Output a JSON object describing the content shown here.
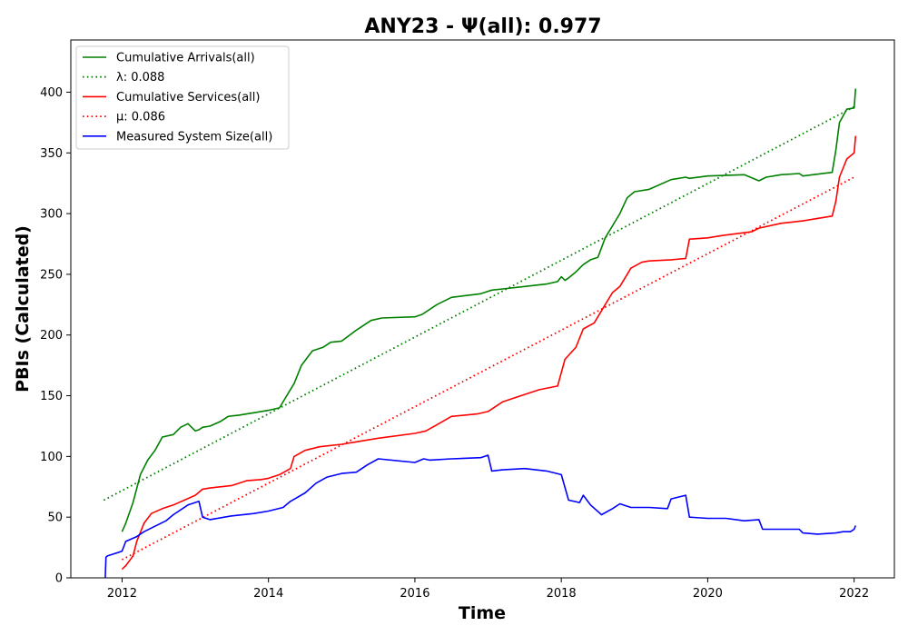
{
  "chart_data": {
    "type": "line",
    "title": "ANY23 -  Ψ(all): 0.977",
    "xlabel": "Time",
    "ylabel": "PBIs (Calculated)",
    "xlim": [
      2011.3,
      2022.55
    ],
    "ylim": [
      0,
      443
    ],
    "x_ticks": [
      2012,
      2014,
      2016,
      2018,
      2020,
      2022
    ],
    "x_tick_labels": [
      "2012",
      "2014",
      "2016",
      "2018",
      "2020",
      "2022"
    ],
    "y_ticks": [
      0,
      50,
      100,
      150,
      200,
      250,
      300,
      350,
      400
    ],
    "y_tick_labels": [
      "0",
      "50",
      "100",
      "150",
      "200",
      "250",
      "300",
      "350",
      "400"
    ],
    "grid": false,
    "legend_position": "top-left",
    "series": [
      {
        "name": "Cumulative Arrivals(all)",
        "color": "#008000",
        "style": "solid",
        "x": [
          2012.0,
          2012.05,
          2012.15,
          2012.25,
          2012.35,
          2012.45,
          2012.55,
          2012.7,
          2012.8,
          2012.9,
          2013.0,
          2013.05,
          2013.1,
          2013.2,
          2013.35,
          2013.45,
          2013.6,
          2013.7,
          2013.8,
          2014.0,
          2014.15,
          2014.25,
          2014.35,
          2014.45,
          2014.6,
          2014.75,
          2014.85,
          2015.0,
          2015.2,
          2015.4,
          2015.55,
          2016.0,
          2016.1,
          2016.3,
          2016.5,
          2016.9,
          2017.0,
          2017.05,
          2017.2,
          2017.5,
          2017.8,
          2017.95,
          2018.0,
          2018.05,
          2018.1,
          2018.2,
          2018.3,
          2018.4,
          2018.5,
          2018.6,
          2018.7,
          2018.8,
          2018.9,
          2019.0,
          2019.2,
          2019.5,
          2019.7,
          2019.75,
          2020.0,
          2020.5,
          2020.7,
          2020.8,
          2021.0,
          2021.25,
          2021.3,
          2021.7,
          2021.75,
          2021.8,
          2021.9,
          2022.0,
          2022.02
        ],
        "values": [
          38,
          45,
          62,
          85,
          97,
          105,
          116,
          118,
          124,
          127,
          121,
          122,
          124,
          125,
          129,
          133,
          134,
          135,
          136,
          138,
          140,
          150,
          160,
          175,
          187,
          190,
          194,
          195,
          204,
          212,
          214,
          215,
          217,
          225,
          231,
          234,
          236,
          237,
          238,
          240,
          242,
          244,
          248,
          245,
          247,
          252,
          258,
          262,
          264,
          280,
          290,
          300,
          313,
          318,
          320,
          328,
          330,
          329,
          331,
          332,
          327,
          330,
          332,
          333,
          331,
          334,
          352,
          375,
          386,
          387,
          403
        ]
      },
      {
        "name": "λ: 0.088",
        "color": "#008000",
        "style": "dotted",
        "x": [
          2011.75,
          2022.0
        ],
        "values": [
          64,
          388
        ]
      },
      {
        "name": "Cumulative Services(all)",
        "color": "#ff0000",
        "style": "solid",
        "x": [
          2012.0,
          2012.05,
          2012.1,
          2012.15,
          2012.2,
          2012.3,
          2012.4,
          2012.55,
          2012.7,
          2013.0,
          2013.1,
          2013.2,
          2013.5,
          2013.6,
          2013.7,
          2013.9,
          2014.0,
          2014.15,
          2014.3,
          2014.35,
          2014.5,
          2014.7,
          2015.0,
          2015.2,
          2015.5,
          2016.0,
          2016.15,
          2016.3,
          2016.5,
          2016.85,
          2017.0,
          2017.2,
          2017.45,
          2017.7,
          2017.95,
          2018.05,
          2018.2,
          2018.3,
          2018.45,
          2018.6,
          2018.7,
          2018.8,
          2018.95,
          2019.1,
          2019.2,
          2019.5,
          2019.7,
          2019.75,
          2020.0,
          2020.2,
          2020.6,
          2020.7,
          2021.0,
          2021.3,
          2021.5,
          2021.7,
          2021.75,
          2021.8,
          2021.9,
          2022.0,
          2022.02
        ],
        "values": [
          7,
          10,
          14,
          18,
          30,
          45,
          53,
          57,
          60,
          68,
          73,
          74,
          76,
          78,
          80,
          81,
          82,
          85,
          90,
          100,
          105,
          108,
          110,
          112,
          115,
          119,
          121,
          126,
          133,
          135,
          137,
          145,
          150,
          155,
          158,
          180,
          190,
          205,
          210,
          225,
          235,
          240,
          255,
          260,
          261,
          262,
          263,
          279,
          280,
          282,
          285,
          288,
          292,
          294,
          296,
          298,
          310,
          330,
          345,
          350,
          364
        ]
      },
      {
        "name": "μ: 0.086",
        "color": "#ff0000",
        "style": "dotted",
        "x": [
          2012.0,
          2022.0
        ],
        "values": [
          15,
          330
        ]
      },
      {
        "name": "Measured System Size(all)",
        "color": "#0000ff",
        "style": "solid",
        "x": [
          2011.77,
          2011.78,
          2011.8,
          2011.9,
          2012.0,
          2012.05,
          2012.2,
          2012.3,
          2012.5,
          2012.6,
          2012.7,
          2012.9,
          2013.05,
          2013.1,
          2013.2,
          2013.5,
          2013.8,
          2014.0,
          2014.2,
          2014.3,
          2014.5,
          2014.65,
          2014.8,
          2015.0,
          2015.2,
          2015.35,
          2015.5,
          2016.0,
          2016.12,
          2016.2,
          2016.5,
          2016.9,
          2017.0,
          2017.05,
          2017.2,
          2017.5,
          2017.8,
          2018.0,
          2018.1,
          2018.25,
          2018.3,
          2018.4,
          2018.55,
          2018.7,
          2018.8,
          2018.95,
          2019.0,
          2019.2,
          2019.45,
          2019.5,
          2019.7,
          2019.75,
          2020.0,
          2020.25,
          2020.5,
          2020.7,
          2020.75,
          2021.0,
          2021.25,
          2021.3,
          2021.5,
          2021.75,
          2021.85,
          2021.95,
          2022.0,
          2022.02
        ],
        "values": [
          0,
          17,
          18,
          20,
          22,
          30,
          34,
          38,
          44,
          47,
          52,
          60,
          63,
          50,
          48,
          51,
          53,
          55,
          58,
          63,
          70,
          78,
          83,
          86,
          87,
          93,
          98,
          95,
          98,
          97,
          98,
          99,
          101,
          88,
          89,
          90,
          88,
          85,
          64,
          62,
          68,
          60,
          52,
          57,
          61,
          58,
          58,
          58,
          57,
          65,
          68,
          50,
          49,
          49,
          47,
          48,
          40,
          40,
          40,
          37,
          36,
          37,
          38,
          38,
          40,
          43
        ]
      }
    ]
  }
}
